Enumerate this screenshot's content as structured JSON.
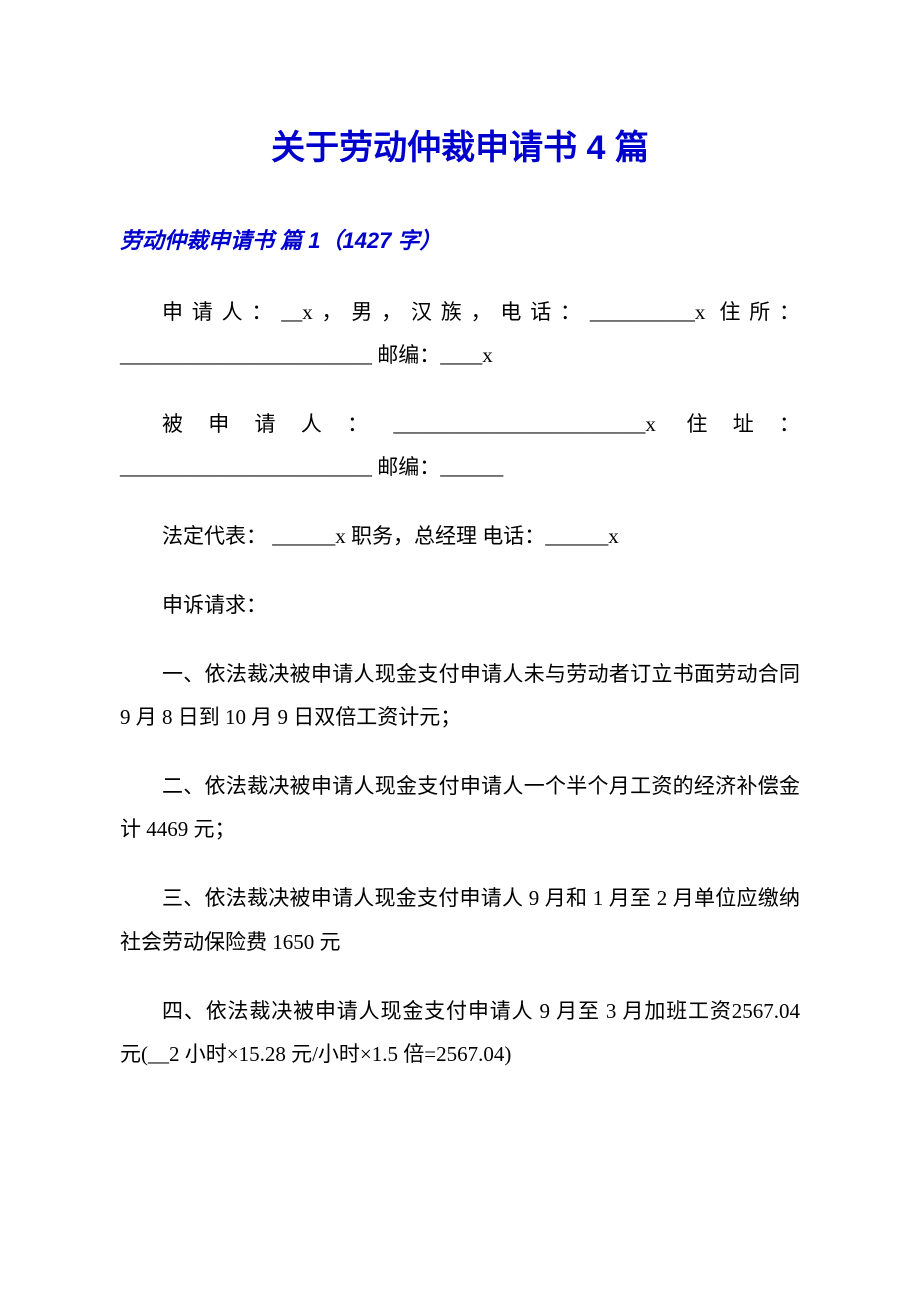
{
  "colors": {
    "background": "#ffffff",
    "title": "#0000cc",
    "subtitle": "#0000cc",
    "body_text": "#000000"
  },
  "typography": {
    "title_fontsize": 34,
    "title_family": "SimHei",
    "title_weight": "bold",
    "subtitle_fontsize": 22,
    "subtitle_family": "SimHei",
    "subtitle_weight": "bold",
    "subtitle_style": "italic",
    "body_fontsize": 21,
    "body_family": "SimSun",
    "line_height": 2.05,
    "text_indent_em": 2
  },
  "title": "关于劳动仲裁申请书 4 篇",
  "subtitle": "劳动仲裁申请书 篇 1（1427 字）",
  "paragraphs": {
    "p1": "申请人：__x，男，汉族，电话：__________x 住所：________________________ 邮编：____x",
    "p2": "被申请人：________________________x 住址：________________________ 邮编：______",
    "p3": "法定代表： ______x 职务，总经理 电话：______x",
    "p4": "申诉请求：",
    "p5": "一、依法裁决被申请人现金支付申请人未与劳动者订立书面劳动合同 9 月 8 日到 10 月 9 日双倍工资计元；",
    "p6": "二、依法裁决被申请人现金支付申请人一个半个月工资的经济补偿金计 4469 元；",
    "p7": "三、依法裁决被申请人现金支付申请人 9 月和 1 月至 2 月单位应缴纳社会劳动保险费 1650 元",
    "p8": "四、依法裁决被申请人现金支付申请人 9 月至 3 月加班工资2567.04 元(__2 小时×15.28 元/小时×1.5 倍=2567.04)"
  }
}
